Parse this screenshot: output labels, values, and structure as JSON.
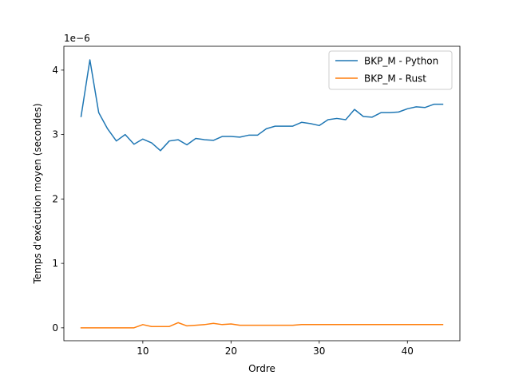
{
  "chart_data": {
    "type": "line",
    "title": "",
    "xlabel": "Ordre",
    "ylabel": "Temps d'exécution moyen (secondes)",
    "y_offset_label": "1e−6",
    "xlim": [
      1.05,
      45.95
    ],
    "ylim": [
      -0.2,
      4.37
    ],
    "y_scale_factor": 1e-06,
    "grid": false,
    "legend_position": "upper right",
    "x_ticks": [
      10,
      20,
      30,
      40
    ],
    "x_tick_labels": [
      "10",
      "20",
      "30",
      "40"
    ],
    "y_ticks": [
      0,
      1,
      2,
      3,
      4
    ],
    "y_tick_labels": [
      "0",
      "1",
      "2",
      "3",
      "4"
    ],
    "x": [
      3,
      4,
      5,
      6,
      7,
      8,
      9,
      10,
      11,
      12,
      13,
      14,
      15,
      16,
      17,
      18,
      19,
      20,
      21,
      22,
      23,
      24,
      25,
      26,
      27,
      28,
      29,
      30,
      31,
      32,
      33,
      34,
      35,
      36,
      37,
      38,
      39,
      40,
      41,
      42,
      43,
      44
    ],
    "series": [
      {
        "name": "BKP_M - Python",
        "color": "#1f77b4",
        "values": [
          3.28,
          4.16,
          3.34,
          3.09,
          2.9,
          3.0,
          2.85,
          2.93,
          2.87,
          2.75,
          2.9,
          2.92,
          2.84,
          2.94,
          2.92,
          2.91,
          2.97,
          2.97,
          2.96,
          2.99,
          2.99,
          3.09,
          3.13,
          3.13,
          3.13,
          3.19,
          3.17,
          3.14,
          3.23,
          3.25,
          3.23,
          3.39,
          3.28,
          3.27,
          3.34,
          3.34,
          3.35,
          3.4,
          3.43,
          3.42,
          3.47,
          3.47
        ]
      },
      {
        "name": "BKP_M - Rust",
        "color": "#ff7f0e",
        "values": [
          0.0,
          0.0,
          0.0,
          0.0,
          0.0,
          0.0,
          0.0,
          0.05,
          0.02,
          0.02,
          0.02,
          0.08,
          0.03,
          0.04,
          0.05,
          0.07,
          0.05,
          0.06,
          0.04,
          0.04,
          0.04,
          0.04,
          0.04,
          0.04,
          0.04,
          0.05,
          0.05,
          0.05,
          0.05,
          0.05,
          0.05,
          0.05,
          0.05,
          0.05,
          0.05,
          0.05,
          0.05,
          0.05,
          0.05,
          0.05,
          0.05,
          0.05
        ]
      }
    ]
  }
}
